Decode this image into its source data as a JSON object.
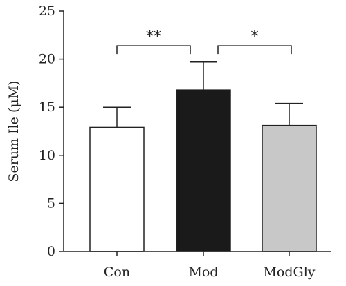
{
  "chart_data": {
    "type": "bar",
    "categories": [
      "Con",
      "Mod",
      "ModGly"
    ],
    "values": [
      12.9,
      16.8,
      13.1
    ],
    "errors": [
      2.1,
      2.9,
      2.3
    ],
    "bar_colors": [
      "#ffffff",
      "#1a1a1a",
      "#c8c8c8"
    ],
    "ylabel": "Serum Ile (μM)",
    "ylim": [
      0,
      25
    ],
    "yticks": [
      "0",
      "5",
      "10",
      "15",
      "20",
      "25"
    ],
    "grid": false,
    "significance": [
      {
        "from": 0,
        "to": 1,
        "label": "**",
        "bracket_y": 21.4
      },
      {
        "from": 1,
        "to": 2,
        "label": "*",
        "bracket_y": 21.4
      }
    ]
  }
}
